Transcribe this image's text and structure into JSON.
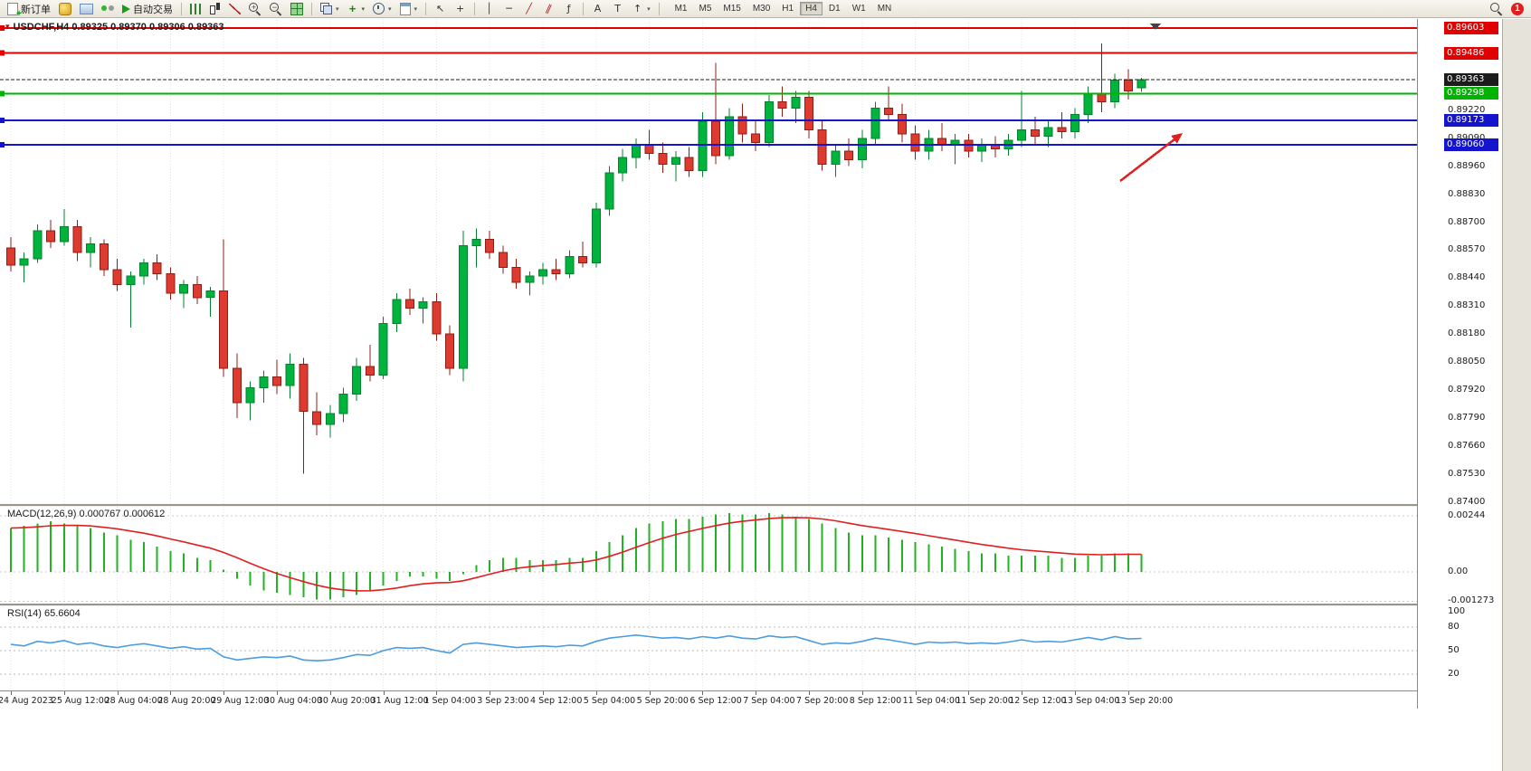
{
  "toolbar": {
    "new_order_label": "新订单",
    "auto_trading_label": "自动交易",
    "timeframes": [
      "M1",
      "M5",
      "M15",
      "M30",
      "H1",
      "H4",
      "D1",
      "W1",
      "MN"
    ],
    "active_timeframe": "H4",
    "notification_count": "1"
  },
  "chart": {
    "header": "USDCHF,H4 0.89325 0.89370 0.89306 0.89363",
    "scale": {
      "max": 0.8964,
      "min": 0.8739
    },
    "levels": [
      {
        "t": "0.89603",
        "v": 0.89603,
        "color": "#e00000",
        "kind": "line"
      },
      {
        "t": "0.89486",
        "v": 0.89486,
        "color": "#e00000",
        "kind": "line"
      },
      {
        "t": "0.89363",
        "v": 0.89363,
        "color": "#1c1c1c",
        "kind": "bid"
      },
      {
        "t": "0.89298",
        "v": 0.89298,
        "color": "#00b300",
        "kind": "line"
      },
      {
        "t": "0.89173",
        "v": 0.89173,
        "color": "#1414cc",
        "kind": "line"
      },
      {
        "t": "0.89060",
        "v": 0.8906,
        "color": "#1414cc",
        "kind": "line"
      }
    ],
    "price_axis_labels": [
      {
        "t": "0.89220",
        "v": 0.8922
      },
      {
        "t": "0.89090",
        "v": 0.8909
      },
      {
        "t": "0.88960",
        "v": 0.8896
      },
      {
        "t": "0.88830",
        "v": 0.8883
      },
      {
        "t": "0.88700",
        "v": 0.887
      },
      {
        "t": "0.88570",
        "v": 0.8857
      },
      {
        "t": "0.88440",
        "v": 0.8844
      },
      {
        "t": "0.88310",
        "v": 0.8831
      },
      {
        "t": "0.88180",
        "v": 0.8818
      },
      {
        "t": "0.88050",
        "v": 0.8805
      },
      {
        "t": "0.87920",
        "v": 0.8792
      },
      {
        "t": "0.87790",
        "v": 0.8779
      },
      {
        "t": "0.87660",
        "v": 0.8766
      },
      {
        "t": "0.87530",
        "v": 0.8753
      },
      {
        "t": "0.87400",
        "v": 0.874
      }
    ],
    "annotation_arrow": {
      "from": [
        1238,
        178
      ],
      "to": [
        1307,
        125
      ],
      "color": "#e02020"
    }
  },
  "chart_data": {
    "type": "candlestick",
    "symbol": "USDCHF",
    "timeframe": "H4",
    "bars_per_label": 4,
    "time_labels": [
      "24 Aug 2023",
      "25 Aug 12:00",
      "28 Aug 04:00",
      "28 Aug 20:00",
      "29 Aug 12:00",
      "30 Aug 04:00",
      "30 Aug 20:00",
      "31 Aug 12:00",
      "1 Sep 04:00",
      "3 Sep 23:00",
      "4 Sep 12:00",
      "5 Sep 04:00",
      "5 Sep 20:00",
      "6 Sep 12:00",
      "7 Sep 04:00",
      "7 Sep 20:00",
      "8 Sep 12:00",
      "11 Sep 04:00",
      "11 Sep 20:00",
      "12 Sep 12:00",
      "13 Sep 04:00",
      "13 Sep 20:00"
    ],
    "ohlc": [
      [
        0.8858,
        0.8863,
        0.8847,
        0.885
      ],
      [
        0.885,
        0.8856,
        0.8842,
        0.8853
      ],
      [
        0.8853,
        0.8869,
        0.8851,
        0.8866
      ],
      [
        0.8866,
        0.8871,
        0.8858,
        0.8861
      ],
      [
        0.8861,
        0.8876,
        0.8859,
        0.8868
      ],
      [
        0.8868,
        0.8871,
        0.8852,
        0.8856
      ],
      [
        0.8856,
        0.8863,
        0.8849,
        0.886
      ],
      [
        0.886,
        0.8862,
        0.8845,
        0.8848
      ],
      [
        0.8848,
        0.8853,
        0.8838,
        0.8841
      ],
      [
        0.8841,
        0.8847,
        0.8821,
        0.8845
      ],
      [
        0.8845,
        0.8853,
        0.8841,
        0.8851
      ],
      [
        0.8851,
        0.8855,
        0.8843,
        0.8846
      ],
      [
        0.8846,
        0.8849,
        0.8834,
        0.8837
      ],
      [
        0.8837,
        0.8843,
        0.883,
        0.8841
      ],
      [
        0.8841,
        0.8845,
        0.8832,
        0.8835
      ],
      [
        0.8835,
        0.884,
        0.8826,
        0.8838
      ],
      [
        0.8838,
        0.8862,
        0.8798,
        0.8802
      ],
      [
        0.8802,
        0.8809,
        0.8779,
        0.8786
      ],
      [
        0.8786,
        0.8796,
        0.8778,
        0.8793
      ],
      [
        0.8793,
        0.8801,
        0.8786,
        0.8798
      ],
      [
        0.8798,
        0.8806,
        0.879,
        0.8794
      ],
      [
        0.8794,
        0.8809,
        0.8788,
        0.8804
      ],
      [
        0.8804,
        0.8807,
        0.8753,
        0.8782
      ],
      [
        0.8782,
        0.8791,
        0.8771,
        0.8776
      ],
      [
        0.8776,
        0.8785,
        0.877,
        0.8781
      ],
      [
        0.8781,
        0.8793,
        0.8777,
        0.879
      ],
      [
        0.879,
        0.8807,
        0.8787,
        0.8803
      ],
      [
        0.8803,
        0.8813,
        0.8796,
        0.8799
      ],
      [
        0.8799,
        0.8826,
        0.8797,
        0.8823
      ],
      [
        0.8823,
        0.8837,
        0.8819,
        0.8834
      ],
      [
        0.8834,
        0.8839,
        0.8827,
        0.883
      ],
      [
        0.883,
        0.8835,
        0.8823,
        0.8833
      ],
      [
        0.8833,
        0.8837,
        0.8815,
        0.8818
      ],
      [
        0.8818,
        0.8822,
        0.8799,
        0.8802
      ],
      [
        0.8802,
        0.8866,
        0.8796,
        0.8859
      ],
      [
        0.8859,
        0.8867,
        0.8849,
        0.8862
      ],
      [
        0.8862,
        0.8866,
        0.8853,
        0.8856
      ],
      [
        0.8856,
        0.8859,
        0.8846,
        0.8849
      ],
      [
        0.8849,
        0.8853,
        0.8839,
        0.8842
      ],
      [
        0.8842,
        0.8847,
        0.8836,
        0.8845
      ],
      [
        0.8845,
        0.8851,
        0.8841,
        0.8848
      ],
      [
        0.8848,
        0.8853,
        0.8843,
        0.8846
      ],
      [
        0.8846,
        0.8857,
        0.8844,
        0.8854
      ],
      [
        0.8854,
        0.8861,
        0.8849,
        0.8851
      ],
      [
        0.8851,
        0.8879,
        0.8849,
        0.8876
      ],
      [
        0.8876,
        0.8896,
        0.8873,
        0.8893
      ],
      [
        0.8893,
        0.8904,
        0.8889,
        0.89
      ],
      [
        0.89,
        0.8909,
        0.8895,
        0.8906
      ],
      [
        0.8906,
        0.8913,
        0.8899,
        0.8902
      ],
      [
        0.8902,
        0.8907,
        0.8893,
        0.8897
      ],
      [
        0.8897,
        0.8903,
        0.8889,
        0.89
      ],
      [
        0.89,
        0.8905,
        0.8891,
        0.8894
      ],
      [
        0.8894,
        0.8921,
        0.8891,
        0.8917
      ],
      [
        0.8917,
        0.8944,
        0.8897,
        0.8901
      ],
      [
        0.8901,
        0.8923,
        0.8899,
        0.8919
      ],
      [
        0.8919,
        0.8925,
        0.8907,
        0.8911
      ],
      [
        0.8911,
        0.8917,
        0.8903,
        0.8907
      ],
      [
        0.8907,
        0.8929,
        0.8905,
        0.8926
      ],
      [
        0.8926,
        0.8933,
        0.8919,
        0.8923
      ],
      [
        0.8923,
        0.8931,
        0.8916,
        0.8928
      ],
      [
        0.8928,
        0.8931,
        0.8909,
        0.8913
      ],
      [
        0.8913,
        0.8917,
        0.8894,
        0.8897
      ],
      [
        0.8897,
        0.8906,
        0.8891,
        0.8903
      ],
      [
        0.8903,
        0.8909,
        0.8896,
        0.8899
      ],
      [
        0.8899,
        0.8913,
        0.8895,
        0.8909
      ],
      [
        0.8909,
        0.8926,
        0.8906,
        0.8923
      ],
      [
        0.8923,
        0.8933,
        0.8917,
        0.892
      ],
      [
        0.892,
        0.8925,
        0.8907,
        0.8911
      ],
      [
        0.8911,
        0.8915,
        0.8899,
        0.8903
      ],
      [
        0.8903,
        0.8913,
        0.8899,
        0.8909
      ],
      [
        0.8909,
        0.8916,
        0.8903,
        0.8906
      ],
      [
        0.8906,
        0.8911,
        0.8897,
        0.8908
      ],
      [
        0.8908,
        0.8911,
        0.89,
        0.8903
      ],
      [
        0.8903,
        0.8909,
        0.8898,
        0.8906
      ],
      [
        0.8906,
        0.891,
        0.89,
        0.8904
      ],
      [
        0.8904,
        0.8911,
        0.8901,
        0.8908
      ],
      [
        0.8908,
        0.8931,
        0.8905,
        0.8913
      ],
      [
        0.8913,
        0.8919,
        0.8906,
        0.891
      ],
      [
        0.891,
        0.8917,
        0.8905,
        0.8914
      ],
      [
        0.8914,
        0.8921,
        0.8909,
        0.8912
      ],
      [
        0.8912,
        0.8923,
        0.8909,
        0.892
      ],
      [
        0.892,
        0.8933,
        0.8916,
        0.893
      ],
      [
        0.893,
        0.8953,
        0.8921,
        0.8926
      ],
      [
        0.8926,
        0.8939,
        0.8923,
        0.8936
      ],
      [
        0.8936,
        0.8941,
        0.8927,
        0.8931
      ],
      [
        0.89325,
        0.8937,
        0.89306,
        0.89363
      ]
    ],
    "macd": {
      "header": "MACD(12,26,9) 0.000767 0.000612",
      "scale": {
        "max": 0.00283,
        "min": -0.00134
      },
      "axis": [
        {
          "t": "0.00244",
          "v": 0.00244
        },
        {
          "t": "0.00",
          "v": 0
        },
        {
          "t": "-0.001273",
          "v": -0.001273
        }
      ],
      "signal_period": 9,
      "values": [
        0.0019,
        0.002,
        0.0021,
        0.0022,
        0.0021,
        0.002,
        0.0019,
        0.0017,
        0.0016,
        0.0014,
        0.0013,
        0.0011,
        0.0009,
        0.0008,
        0.0006,
        0.0005,
        0.0001,
        -0.0003,
        -0.0006,
        -0.0008,
        -0.0009,
        -0.001,
        -0.0011,
        -0.0012,
        -0.0012,
        -0.0011,
        -0.001,
        -0.0008,
        -0.0006,
        -0.0004,
        -0.0002,
        -0.0002,
        -0.0003,
        -0.0004,
        -0.0001,
        0.0003,
        0.0005,
        0.0006,
        0.0006,
        0.0005,
        0.0005,
        0.0005,
        0.0006,
        0.0006,
        0.0009,
        0.0013,
        0.0016,
        0.0019,
        0.0021,
        0.0022,
        0.0023,
        0.0023,
        0.0024,
        0.0025,
        0.00255,
        0.0025,
        0.0025,
        0.00255,
        0.0025,
        0.0024,
        0.0023,
        0.0021,
        0.0019,
        0.0017,
        0.0016,
        0.0016,
        0.0015,
        0.0014,
        0.0013,
        0.0012,
        0.0011,
        0.001,
        0.0009,
        0.0008,
        0.0008,
        0.0007,
        0.0007,
        0.0007,
        0.0007,
        0.0006,
        0.0006,
        0.0007,
        0.0007,
        0.0008,
        0.0008,
        0.000767
      ]
    },
    "rsi": {
      "header": "RSI(14) 65.6604",
      "scale": {
        "max": 100,
        "min": 0
      },
      "axis": [
        {
          "t": "100",
          "v": 100
        },
        {
          "t": "80",
          "v": 80
        },
        {
          "t": "50",
          "v": 50
        },
        {
          "t": "20",
          "v": 20
        }
      ],
      "levels": [
        80,
        50,
        20
      ],
      "values": [
        58,
        56,
        62,
        60,
        63,
        58,
        60,
        56,
        54,
        57,
        59,
        56,
        53,
        55,
        52,
        53,
        42,
        38,
        40,
        42,
        41,
        43,
        38,
        37,
        38,
        41,
        45,
        44,
        50,
        54,
        53,
        54,
        50,
        47,
        58,
        60,
        58,
        56,
        54,
        55,
        56,
        55,
        57,
        56,
        62,
        66,
        68,
        70,
        68,
        66,
        67,
        65,
        68,
        66,
        69,
        66,
        65,
        69,
        67,
        68,
        63,
        58,
        60,
        59,
        62,
        66,
        64,
        61,
        58,
        61,
        60,
        61,
        59,
        60,
        59,
        61,
        64,
        61,
        62,
        61,
        64,
        67,
        64,
        68,
        65,
        65.66
      ]
    }
  },
  "colors": {
    "bull": "#00b33c",
    "bull_stroke": "#05802f",
    "bear": "#dd3a30",
    "bear_stroke": "#8f1d16",
    "macd_hist": "#22b322",
    "macd_signal": "#e02020",
    "rsi_line": "#4a9de0"
  }
}
